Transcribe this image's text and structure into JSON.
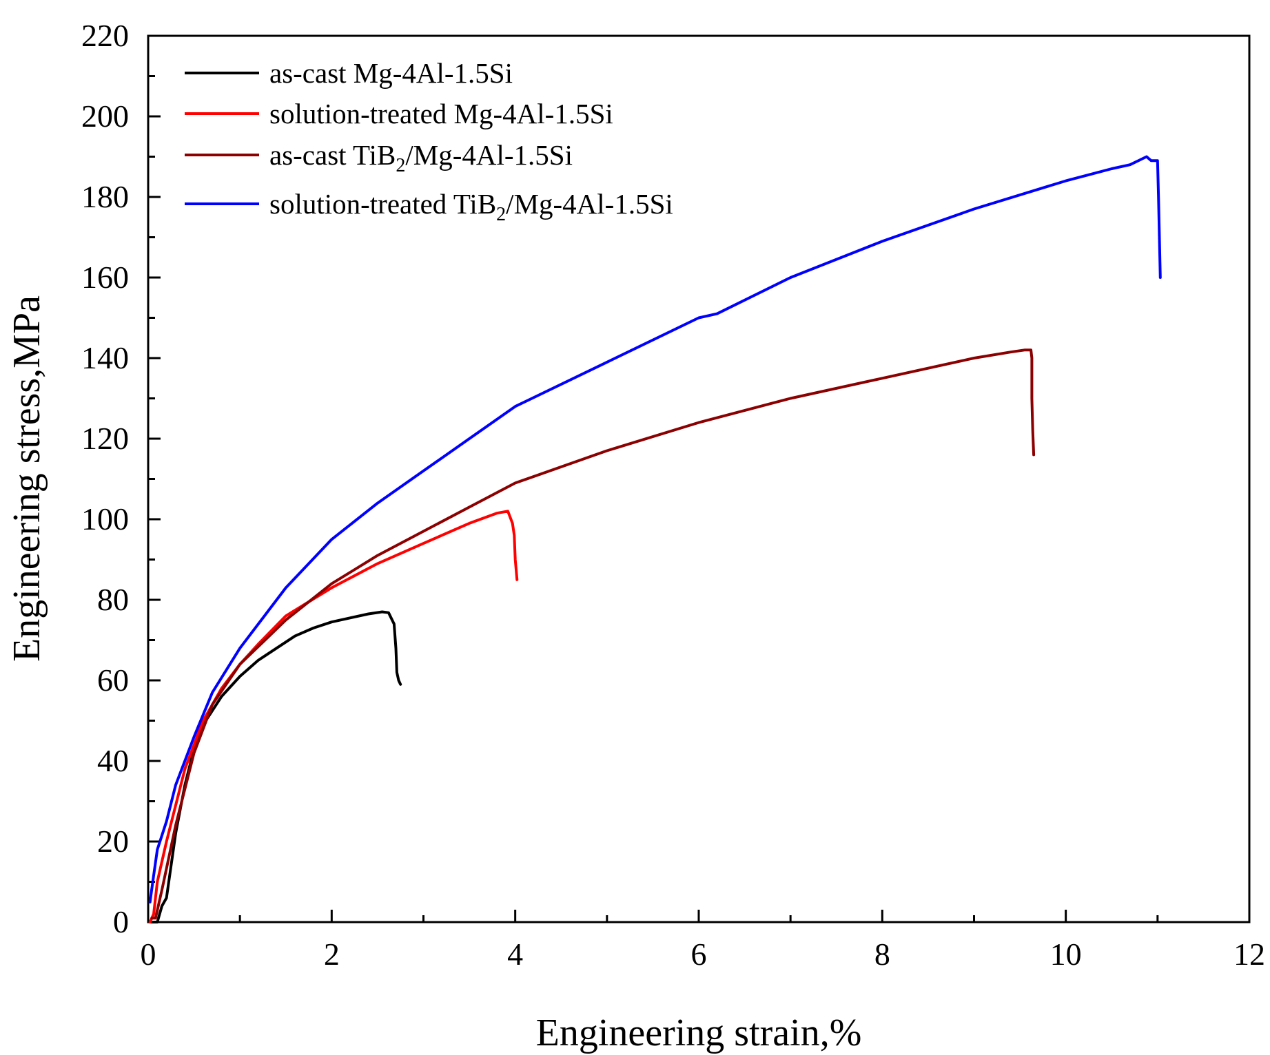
{
  "chart_data": {
    "type": "line",
    "title": "",
    "xlabel": "Engineering strain,%",
    "ylabel": "Engineering stress,MPa",
    "xlim": [
      0,
      12
    ],
    "ylim": [
      0,
      220
    ],
    "xticks": [
      0,
      2,
      4,
      6,
      8,
      10,
      12
    ],
    "xtick_labels": [
      "0",
      "2",
      "4",
      "6",
      "8",
      "10",
      "12"
    ],
    "yticks": [
      0,
      20,
      40,
      60,
      80,
      100,
      120,
      140,
      160,
      180,
      200,
      220
    ],
    "ytick_labels": [
      "0",
      "20",
      "40",
      "60",
      "80",
      "100",
      "120",
      "140",
      "160",
      "180",
      "200",
      "220"
    ],
    "legend_position": "top-left",
    "grid": false,
    "series": [
      {
        "name": "as-cast Mg-4Al-1.5Si",
        "legend_main": "as-cast Mg-4Al-1.5Si",
        "color": "#000000",
        "points": [
          [
            0.02,
            0
          ],
          [
            0.1,
            0
          ],
          [
            0.15,
            4
          ],
          [
            0.2,
            6
          ],
          [
            0.3,
            22
          ],
          [
            0.4,
            34
          ],
          [
            0.5,
            43
          ],
          [
            0.6,
            49
          ],
          [
            0.8,
            56
          ],
          [
            1.0,
            61
          ],
          [
            1.2,
            65
          ],
          [
            1.4,
            68
          ],
          [
            1.6,
            71
          ],
          [
            1.8,
            73
          ],
          [
            2.0,
            74.5
          ],
          [
            2.2,
            75.5
          ],
          [
            2.4,
            76.5
          ],
          [
            2.55,
            77
          ],
          [
            2.62,
            76.8
          ],
          [
            2.68,
            74
          ],
          [
            2.7,
            68
          ],
          [
            2.71,
            62
          ],
          [
            2.73,
            60
          ],
          [
            2.75,
            59
          ]
        ]
      },
      {
        "name": "solution-treated Mg-4Al-1.5Si",
        "legend_main": "solution-treated Mg-4Al-1.5Si",
        "color": "#ff0000",
        "points": [
          [
            0.02,
            0
          ],
          [
            0.06,
            2
          ],
          [
            0.1,
            10
          ],
          [
            0.2,
            20
          ],
          [
            0.4,
            38
          ],
          [
            0.6,
            50
          ],
          [
            0.8,
            58
          ],
          [
            1.0,
            64
          ],
          [
            1.2,
            69
          ],
          [
            1.5,
            76
          ],
          [
            2.0,
            83
          ],
          [
            2.5,
            89
          ],
          [
            3.0,
            94
          ],
          [
            3.5,
            99
          ],
          [
            3.8,
            101.5
          ],
          [
            3.92,
            102
          ],
          [
            3.97,
            99
          ],
          [
            3.99,
            96
          ],
          [
            4.0,
            90
          ],
          [
            4.02,
            85
          ]
        ]
      },
      {
        "name": "as-cast TiB2/Mg-4Al-1.5Si",
        "legend_main": "as-cast TiB",
        "legend_sub": "2",
        "legend_tail": "/Mg-4Al-1.5Si",
        "color": "#8b0000",
        "points": [
          [
            0.04,
            1
          ],
          [
            0.08,
            1
          ],
          [
            0.15,
            8
          ],
          [
            0.3,
            24
          ],
          [
            0.5,
            42
          ],
          [
            0.7,
            54
          ],
          [
            1.0,
            64
          ],
          [
            1.5,
            75
          ],
          [
            2.0,
            84
          ],
          [
            2.5,
            91
          ],
          [
            3.0,
            97
          ],
          [
            3.5,
            103
          ],
          [
            4.0,
            109
          ],
          [
            5.0,
            117
          ],
          [
            6.0,
            124
          ],
          [
            7.0,
            130
          ],
          [
            8.0,
            135
          ],
          [
            9.0,
            140
          ],
          [
            9.4,
            141.5
          ],
          [
            9.55,
            142
          ],
          [
            9.62,
            142
          ],
          [
            9.63,
            140
          ],
          [
            9.63,
            130
          ],
          [
            9.64,
            122
          ],
          [
            9.65,
            116
          ]
        ]
      },
      {
        "name": "solution-treated TiB2/Mg-4Al-1.5Si",
        "legend_main": "solution-treated TiB",
        "legend_sub": "2",
        "legend_tail": "/Mg-4Al-1.5Si",
        "color": "#0000ff",
        "points": [
          [
            0.02,
            5
          ],
          [
            0.05,
            10
          ],
          [
            0.1,
            18
          ],
          [
            0.2,
            25
          ],
          [
            0.3,
            34
          ],
          [
            0.5,
            46
          ],
          [
            0.7,
            57
          ],
          [
            1.0,
            68
          ],
          [
            1.5,
            83
          ],
          [
            2.0,
            95
          ],
          [
            2.5,
            104
          ],
          [
            3.0,
            112
          ],
          [
            3.5,
            120
          ],
          [
            4.0,
            128
          ],
          [
            5.0,
            139
          ],
          [
            6.0,
            150
          ],
          [
            6.2,
            151
          ],
          [
            7.0,
            160
          ],
          [
            8.0,
            169
          ],
          [
            9.0,
            177
          ],
          [
            10.0,
            184
          ],
          [
            10.5,
            187
          ],
          [
            10.7,
            188
          ],
          [
            10.88,
            190
          ],
          [
            10.93,
            189
          ],
          [
            11.0,
            189
          ],
          [
            11.01,
            180
          ],
          [
            11.02,
            170
          ],
          [
            11.03,
            160
          ]
        ]
      }
    ]
  }
}
